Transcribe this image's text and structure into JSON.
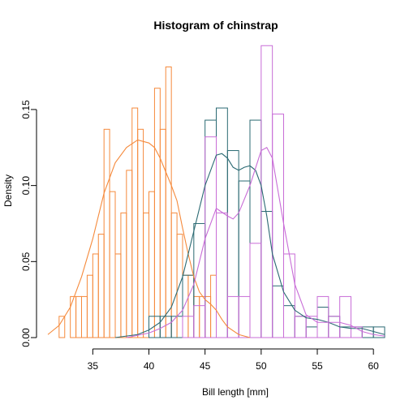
{
  "chart_data": {
    "type": "histogram",
    "title": "Histogram of chinstrap",
    "xlabel": "Bill length [mm]",
    "ylabel": "Density",
    "xlim": [
      31,
      61
    ],
    "ylim": [
      0,
      0.19
    ],
    "xticks": [
      35,
      40,
      45,
      50,
      55,
      60
    ],
    "yticks": [
      0.0,
      0.05,
      0.1,
      0.15
    ],
    "xtick_labels": [
      "35",
      "40",
      "45",
      "50",
      "55",
      "60"
    ],
    "ytick_labels": [
      "0.00",
      "0.05",
      "0.10",
      "0.15"
    ],
    "grid": false,
    "legend": "none",
    "series": [
      {
        "color": "#F58A3C",
        "bin_width": 0.5,
        "bins": [
          {
            "x0": 32.0,
            "density": 0.014
          },
          {
            "x0": 33.0,
            "density": 0.027
          },
          {
            "x0": 33.5,
            "density": 0.027
          },
          {
            "x0": 34.0,
            "density": 0.027
          },
          {
            "x0": 34.5,
            "density": 0.041
          },
          {
            "x0": 35.0,
            "density": 0.055
          },
          {
            "x0": 35.5,
            "density": 0.068
          },
          {
            "x0": 36.0,
            "density": 0.137
          },
          {
            "x0": 36.5,
            "density": 0.096
          },
          {
            "x0": 37.0,
            "density": 0.055
          },
          {
            "x0": 37.5,
            "density": 0.082
          },
          {
            "x0": 38.0,
            "density": 0.11
          },
          {
            "x0": 38.5,
            "density": 0.151
          },
          {
            "x0": 39.0,
            "density": 0.137
          },
          {
            "x0": 39.5,
            "density": 0.082
          },
          {
            "x0": 40.0,
            "density": 0.096
          },
          {
            "x0": 40.5,
            "density": 0.164
          },
          {
            "x0": 41.0,
            "density": 0.137
          },
          {
            "x0": 41.5,
            "density": 0.178
          },
          {
            "x0": 42.0,
            "density": 0.082
          },
          {
            "x0": 42.5,
            "density": 0.068
          },
          {
            "x0": 43.0,
            "density": 0.041
          },
          {
            "x0": 43.5,
            "density": 0.041
          },
          {
            "x0": 44.0,
            "density": 0.027
          },
          {
            "x0": 44.5,
            "density": 0.027
          },
          {
            "x0": 45.0,
            "density": 0.027
          },
          {
            "x0": 45.5,
            "density": 0.041
          }
        ],
        "density_curve": [
          [
            31.0,
            0.002
          ],
          [
            32.0,
            0.008
          ],
          [
            33.0,
            0.02
          ],
          [
            34.0,
            0.04
          ],
          [
            35.0,
            0.065
          ],
          [
            36.0,
            0.095
          ],
          [
            37.0,
            0.115
          ],
          [
            38.0,
            0.125
          ],
          [
            39.0,
            0.13
          ],
          [
            40.0,
            0.128
          ],
          [
            40.5,
            0.125
          ],
          [
            41.0,
            0.118
          ],
          [
            42.0,
            0.1
          ],
          [
            42.5,
            0.09
          ],
          [
            43.0,
            0.072
          ],
          [
            43.5,
            0.055
          ],
          [
            44.0,
            0.04
          ],
          [
            44.5,
            0.03
          ],
          [
            45.0,
            0.025
          ],
          [
            45.5,
            0.022
          ],
          [
            46.0,
            0.018
          ],
          [
            46.5,
            0.012
          ],
          [
            47.0,
            0.007
          ],
          [
            48.0,
            0.002
          ],
          [
            49.0,
            0.0
          ]
        ]
      },
      {
        "color": "#2B6A73",
        "bin_width": 1.0,
        "bins": [
          {
            "x0": 40.0,
            "density": 0.014
          },
          {
            "x0": 41.0,
            "density": 0.014
          },
          {
            "x0": 42.0,
            "density": 0.014
          },
          {
            "x0": 43.0,
            "density": 0.041
          },
          {
            "x0": 44.0,
            "density": 0.075
          },
          {
            "x0": 45.0,
            "density": 0.143
          },
          {
            "x0": 46.0,
            "density": 0.151
          },
          {
            "x0": 47.0,
            "density": 0.123
          },
          {
            "x0": 48.0,
            "density": 0.103
          },
          {
            "x0": 49.0,
            "density": 0.143
          },
          {
            "x0": 50.0,
            "density": 0.083
          },
          {
            "x0": 51.0,
            "density": 0.034
          },
          {
            "x0": 52.0,
            "density": 0.021
          },
          {
            "x0": 53.0,
            "density": 0.014
          },
          {
            "x0": 54.0,
            "density": 0.007
          },
          {
            "x0": 55.0,
            "density": 0.02
          },
          {
            "x0": 56.0,
            "density": 0.014
          },
          {
            "x0": 57.0,
            "density": 0.007
          },
          {
            "x0": 58.0,
            "density": 0.007
          },
          {
            "x0": 59.0,
            "density": 0.007
          },
          {
            "x0": 60.0,
            "density": 0.007
          }
        ],
        "density_curve": [
          [
            37.0,
            0.0
          ],
          [
            39.0,
            0.002
          ],
          [
            40.0,
            0.005
          ],
          [
            41.0,
            0.01
          ],
          [
            42.0,
            0.02
          ],
          [
            43.0,
            0.04
          ],
          [
            44.0,
            0.07
          ],
          [
            45.0,
            0.1
          ],
          [
            46.0,
            0.12
          ],
          [
            46.5,
            0.121
          ],
          [
            47.0,
            0.118
          ],
          [
            47.5,
            0.112
          ],
          [
            48.0,
            0.11
          ],
          [
            48.5,
            0.112
          ],
          [
            49.0,
            0.113
          ],
          [
            49.5,
            0.11
          ],
          [
            50.0,
            0.1
          ],
          [
            50.5,
            0.08
          ],
          [
            51.0,
            0.055
          ],
          [
            52.0,
            0.03
          ],
          [
            53.0,
            0.018
          ],
          [
            54.0,
            0.013
          ],
          [
            55.0,
            0.012
          ],
          [
            56.0,
            0.01
          ],
          [
            57.0,
            0.007
          ],
          [
            58.0,
            0.006
          ],
          [
            59.0,
            0.006
          ],
          [
            60.0,
            0.004
          ],
          [
            61.0,
            0.002
          ]
        ]
      },
      {
        "color": "#C86DD7",
        "bin_width": 1.0,
        "bins": [
          {
            "x0": 40.0,
            "density": 0.0
          },
          {
            "x0": 41.0,
            "density": 0.0
          },
          {
            "x0": 42.0,
            "density": 0.0
          },
          {
            "x0": 43.0,
            "density": 0.014
          },
          {
            "x0": 44.0,
            "density": 0.021
          },
          {
            "x0": 45.0,
            "density": 0.132
          },
          {
            "x0": 46.0,
            "density": 0.082
          },
          {
            "x0": 47.0,
            "density": 0.027
          },
          {
            "x0": 48.0,
            "density": 0.027
          },
          {
            "x0": 49.0,
            "density": 0.062
          },
          {
            "x0": 50.0,
            "density": 0.192
          },
          {
            "x0": 51.0,
            "density": 0.147
          },
          {
            "x0": 52.0,
            "density": 0.055
          },
          {
            "x0": 53.0,
            "density": 0.014
          },
          {
            "x0": 54.0,
            "density": 0.014
          },
          {
            "x0": 55.0,
            "density": 0.027
          },
          {
            "x0": 56.0,
            "density": 0.014
          },
          {
            "x0": 57.0,
            "density": 0.027
          },
          {
            "x0": 58.0,
            "density": 0.007
          }
        ],
        "density_curve": [
          [
            38.0,
            0.0
          ],
          [
            40.0,
            0.003
          ],
          [
            41.0,
            0.006
          ],
          [
            42.0,
            0.01
          ],
          [
            43.0,
            0.018
          ],
          [
            44.0,
            0.035
          ],
          [
            45.0,
            0.065
          ],
          [
            46.0,
            0.085
          ],
          [
            47.0,
            0.08
          ],
          [
            47.5,
            0.078
          ],
          [
            48.0,
            0.082
          ],
          [
            49.0,
            0.1
          ],
          [
            50.0,
            0.123
          ],
          [
            50.5,
            0.125
          ],
          [
            51.0,
            0.118
          ],
          [
            52.0,
            0.075
          ],
          [
            53.0,
            0.035
          ],
          [
            54.0,
            0.015
          ],
          [
            55.0,
            0.01
          ],
          [
            56.0,
            0.01
          ],
          [
            57.0,
            0.01
          ],
          [
            58.0,
            0.008
          ],
          [
            59.0,
            0.004
          ],
          [
            60.0,
            0.002
          ],
          [
            61.0,
            0.001
          ]
        ]
      }
    ]
  }
}
